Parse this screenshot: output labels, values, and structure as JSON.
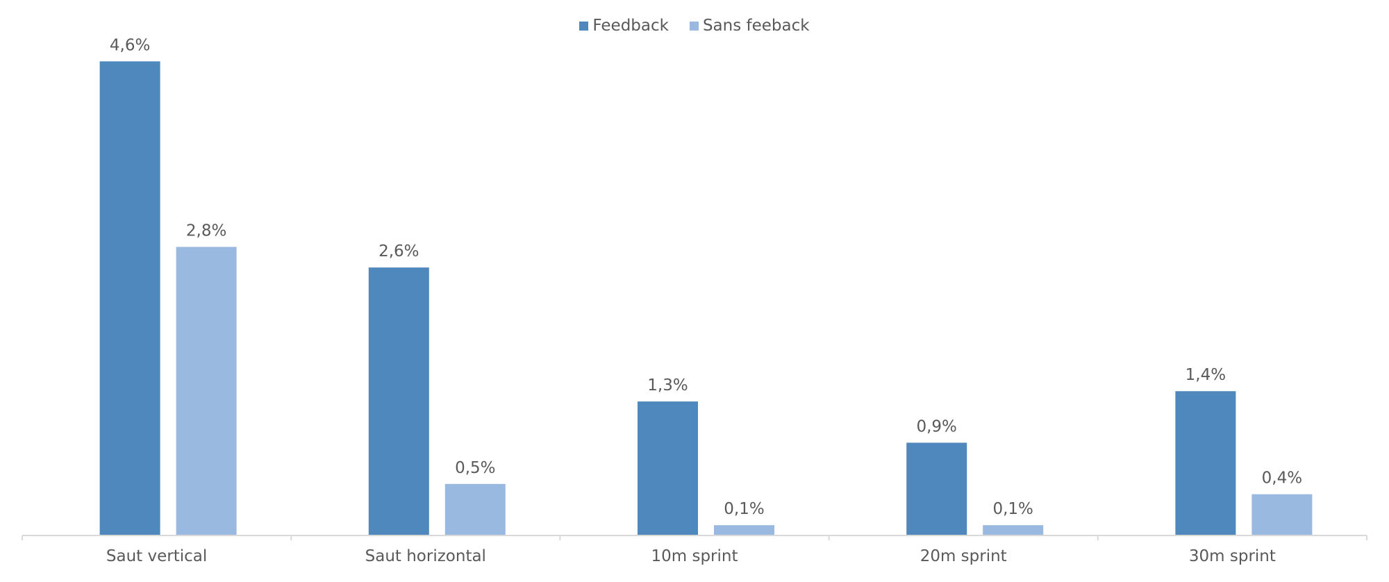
{
  "colors": {
    "feedback": "#4F88BC",
    "sans_feedback": "#9AB9E0",
    "axis": "#D9D9D9",
    "text": "#595959"
  },
  "chart_data": {
    "type": "bar",
    "categories": [
      "Saut vertical",
      "Saut horizontal",
      "10m sprint",
      "20m sprint",
      "30m sprint"
    ],
    "series": [
      {
        "name": "Feedback",
        "values": [
          4.6,
          2.6,
          1.3,
          0.9,
          1.4
        ],
        "labels": [
          "4,6%",
          "2,6%",
          "1,3%",
          "0,9%",
          "1,4%"
        ]
      },
      {
        "name": "Sans feeback",
        "values": [
          2.8,
          0.5,
          0.1,
          0.1,
          0.4
        ],
        "labels": [
          "2,8%",
          "0,5%",
          "0,1%",
          "0,1%",
          "0,4%"
        ]
      }
    ],
    "title": "",
    "xlabel": "",
    "ylabel": "",
    "ylim": [
      0,
      5
    ],
    "grid": false,
    "legend_position": "top-center"
  }
}
